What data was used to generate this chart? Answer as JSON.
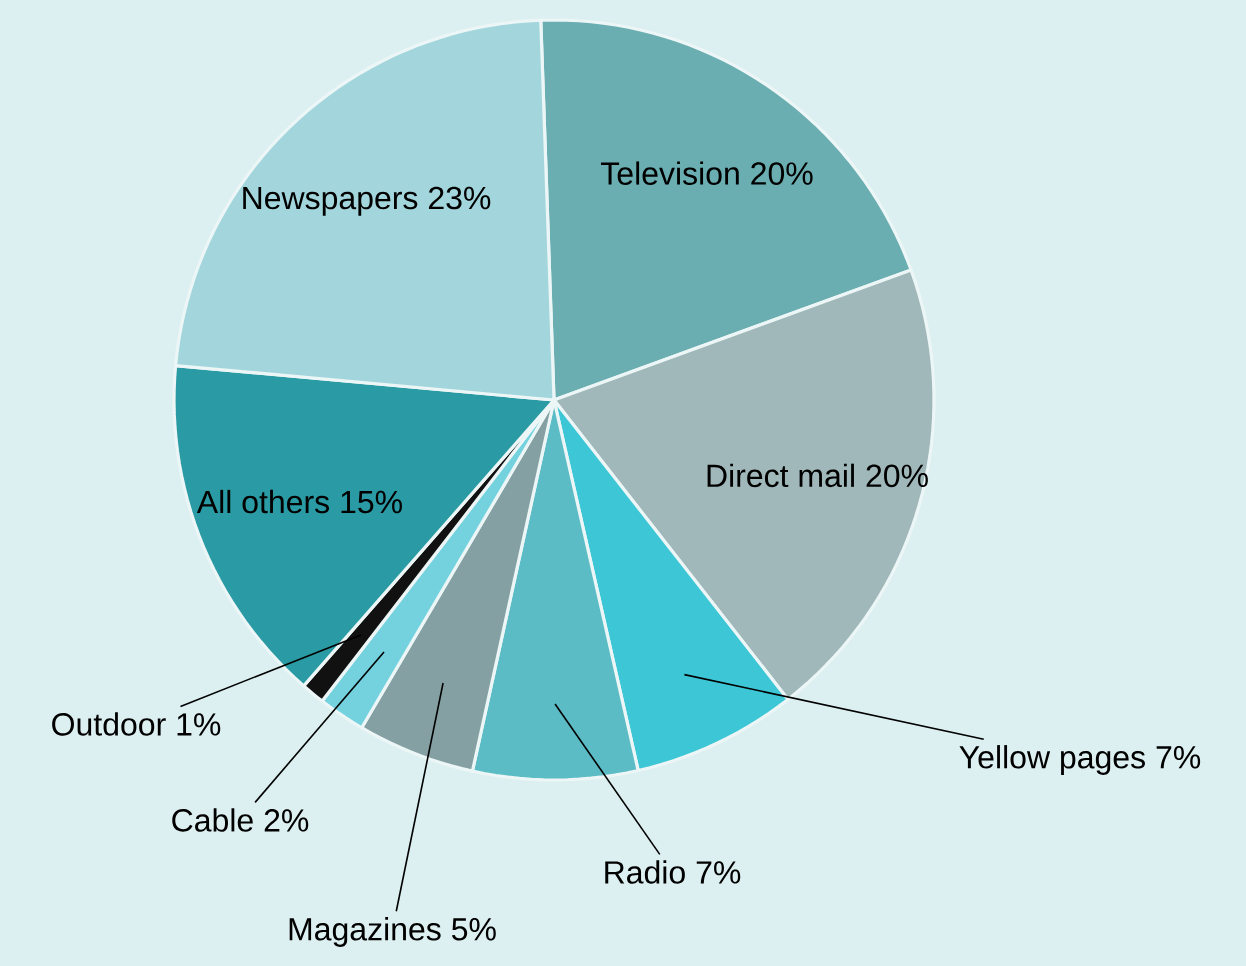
{
  "chart_data": {
    "type": "pie",
    "categories": [
      "Television",
      "Direct mail",
      "Yellow pages",
      "Radio",
      "Magazines",
      "Cable",
      "Outdoor",
      "All others",
      "Newspapers"
    ],
    "values": [
      20,
      20,
      7,
      7,
      5,
      2,
      1,
      15,
      23
    ],
    "value_labels": [
      "20%",
      "20%",
      "7%",
      "7%",
      "5%",
      "2%",
      "1%",
      "15%",
      "23%"
    ],
    "colors": [
      "#6aaeb2",
      "#a0b8ba",
      "#3cc6d6",
      "#5cbcc6",
      "#84a0a3",
      "#74d2de",
      "#111111",
      "#2a9ba4",
      "#a2d6dc"
    ]
  }
}
